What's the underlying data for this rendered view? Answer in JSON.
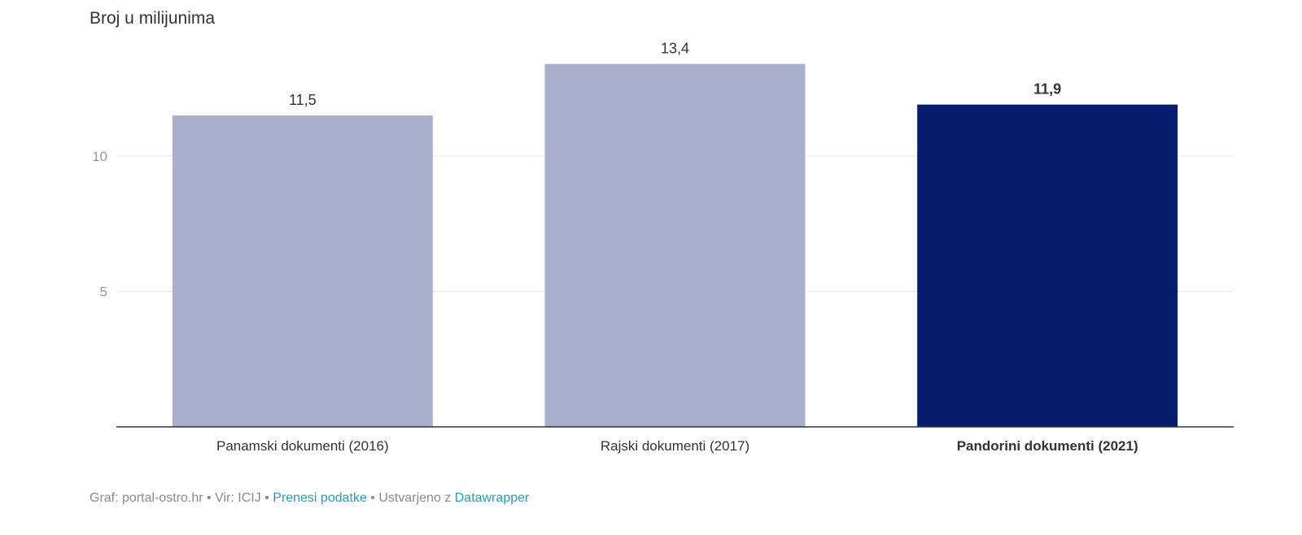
{
  "chart_data": {
    "type": "bar",
    "ylabel": "Broj u milijunima",
    "categories": [
      "Panamski dokumenti (2016)",
      "Rajski dokumenti (2017)",
      "Pandorini dokumenti (2021)"
    ],
    "values": [
      11.5,
      13.4,
      11.9
    ],
    "value_labels": [
      "11,5",
      "13,4",
      "11,9"
    ],
    "y_ticks": [
      5,
      10
    ],
    "ylim": [
      0,
      14.2
    ],
    "grid": true,
    "highlight_index": 2,
    "colors": {
      "normal": "#a9b0cd",
      "highlight": "#061d6e",
      "grid": "#e6e6e6",
      "axis": "#333333",
      "tick_text": "#9a9a9a",
      "label_text": "#333333"
    }
  },
  "footer": {
    "graf_label": "Graf: portal-ostro.hr",
    "bullet1": " • ",
    "source_label": "Vir: ICIJ",
    "bullet2": " • ",
    "download_link": "Prenesi podatke",
    "bullet3": " • ",
    "created_label": "Ustvarjeno z ",
    "datawrapper_link": "Datawrapper"
  }
}
